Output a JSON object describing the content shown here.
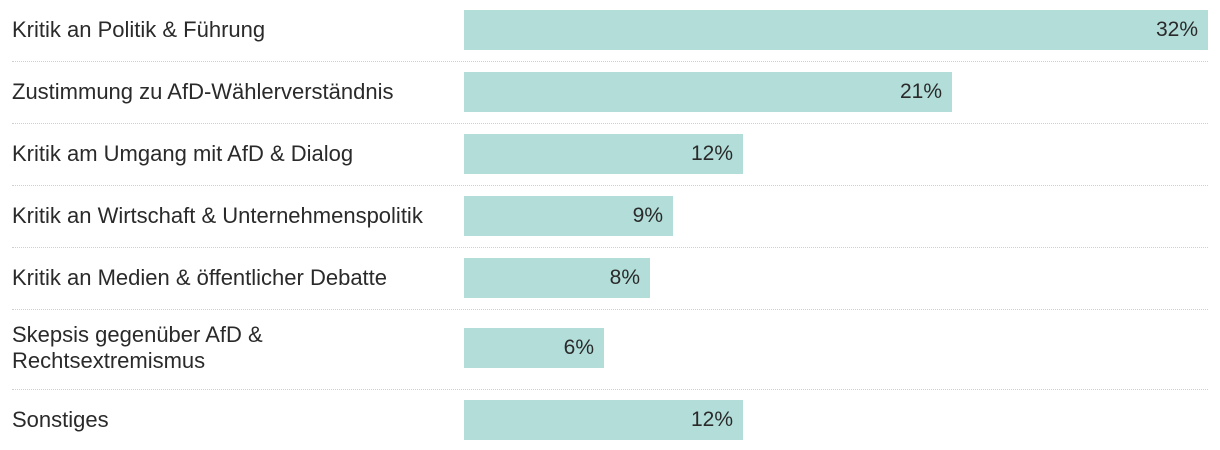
{
  "chart_data": {
    "type": "bar",
    "orientation": "horizontal",
    "title": "",
    "xlabel": "",
    "ylabel": "",
    "xlim": [
      0,
      32
    ],
    "grid": false,
    "bar_color": "#b2ddd9",
    "categories": [
      "Kritik an Politik & Führung",
      "Zustimmung zu AfD-Wählerverständnis",
      "Kritik am Umgang mit AfD & Dialog",
      "Kritik an Wirtschaft & Unternehmenspolitik",
      "Kritik an Medien & öffentlicher Debatte",
      "Skepsis gegenüber AfD & Rechtsextremismus",
      "Sonstiges"
    ],
    "values": [
      32,
      21,
      12,
      9,
      8,
      6,
      12
    ],
    "data_labels": [
      "32%",
      "21%",
      "12%",
      "9%",
      "8%",
      "6%",
      "12%"
    ]
  }
}
